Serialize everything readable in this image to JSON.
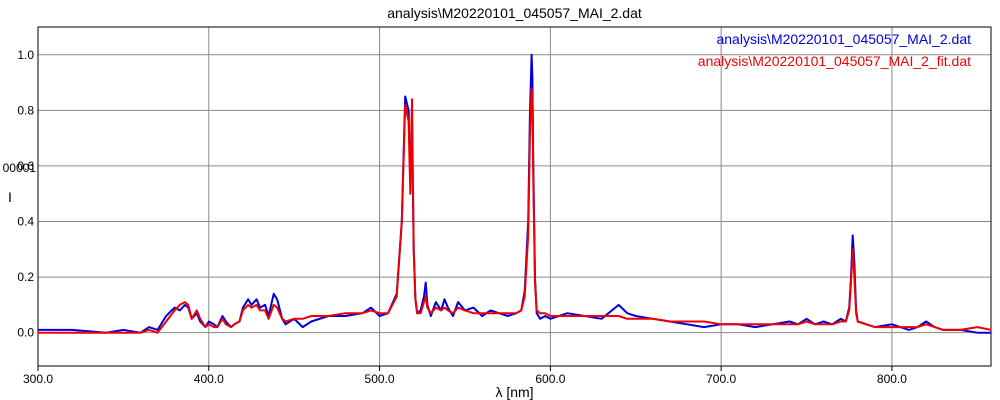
{
  "chart_data": {
    "type": "line",
    "title": "analysis\\M20220101_045057_MAI_2.dat",
    "xlabel": "λ [nm]",
    "ylabel": "I",
    "ylabel_prefix": "00001",
    "xlim": [
      300,
      858
    ],
    "ylim": [
      -0.12,
      1.1
    ],
    "x_ticks": [
      300,
      400,
      500,
      600,
      700,
      800
    ],
    "x_tick_labels": [
      "300.0",
      "400.0",
      "500.0",
      "600.0",
      "700.0",
      "800.0"
    ],
    "y_ticks": [
      0.0,
      0.2,
      0.4,
      0.6,
      0.8,
      1.0
    ],
    "y_tick_labels": [
      "0.0",
      "0.2",
      "0.4",
      "0.6",
      "0.8",
      "1.0"
    ],
    "grid": true,
    "legend_position": "top-right",
    "series": [
      {
        "name": "analysis\\M20220101_045057_MAI_2.dat",
        "color": "#0000dd",
        "x": [
          300,
          320,
          340,
          350,
          360,
          365,
          370,
          375,
          380,
          383,
          386,
          388,
          390,
          393,
          395,
          398,
          400,
          403,
          405,
          408,
          410,
          413,
          415,
          418,
          420,
          423,
          425,
          428,
          430,
          433,
          435,
          438,
          440,
          443,
          445,
          450,
          455,
          460,
          470,
          480,
          490,
          495,
          500,
          505,
          510,
          513,
          515,
          517,
          518,
          519,
          520,
          521,
          522,
          524,
          526,
          527,
          528,
          530,
          533,
          536,
          538,
          540,
          543,
          546,
          550,
          555,
          560,
          565,
          570,
          575,
          580,
          583,
          585,
          587,
          588,
          589,
          589.5,
          590,
          591,
          592,
          594,
          597,
          600,
          610,
          620,
          630,
          640,
          645,
          650,
          660,
          670,
          680,
          690,
          700,
          710,
          720,
          730,
          740,
          745,
          750,
          755,
          760,
          765,
          770,
          773,
          775,
          776,
          777,
          778,
          779,
          780,
          785,
          790,
          800,
          810,
          815,
          820,
          825,
          830,
          840,
          850,
          858
        ],
        "y": [
          0.01,
          0.01,
          0.0,
          0.01,
          0.0,
          0.02,
          0.01,
          0.06,
          0.09,
          0.08,
          0.1,
          0.09,
          0.05,
          0.07,
          0.04,
          0.02,
          0.04,
          0.03,
          0.02,
          0.06,
          0.04,
          0.02,
          0.03,
          0.04,
          0.09,
          0.12,
          0.1,
          0.12,
          0.09,
          0.1,
          0.06,
          0.14,
          0.12,
          0.05,
          0.03,
          0.05,
          0.02,
          0.04,
          0.06,
          0.06,
          0.07,
          0.09,
          0.06,
          0.07,
          0.14,
          0.4,
          0.85,
          0.8,
          0.55,
          0.75,
          0.3,
          0.12,
          0.07,
          0.08,
          0.13,
          0.18,
          0.1,
          0.06,
          0.11,
          0.08,
          0.12,
          0.09,
          0.06,
          0.11,
          0.08,
          0.09,
          0.06,
          0.08,
          0.07,
          0.06,
          0.07,
          0.08,
          0.15,
          0.4,
          0.78,
          1.0,
          0.92,
          0.6,
          0.2,
          0.07,
          0.05,
          0.06,
          0.05,
          0.07,
          0.06,
          0.05,
          0.1,
          0.07,
          0.06,
          0.05,
          0.04,
          0.03,
          0.02,
          0.03,
          0.03,
          0.02,
          0.03,
          0.04,
          0.03,
          0.05,
          0.03,
          0.04,
          0.03,
          0.05,
          0.04,
          0.09,
          0.2,
          0.35,
          0.25,
          0.08,
          0.04,
          0.03,
          0.02,
          0.03,
          0.01,
          0.02,
          0.04,
          0.02,
          0.01,
          0.01,
          0.0,
          0.0
        ]
      },
      {
        "name": "analysis\\M20220101_045057_MAI_2_fit.dat",
        "color": "#ee0000",
        "x": [
          300,
          320,
          340,
          350,
          360,
          365,
          370,
          375,
          380,
          383,
          386,
          388,
          390,
          393,
          395,
          398,
          400,
          403,
          405,
          408,
          410,
          413,
          415,
          418,
          420,
          423,
          425,
          428,
          430,
          433,
          435,
          438,
          440,
          443,
          445,
          450,
          455,
          460,
          470,
          480,
          490,
          495,
          500,
          505,
          510,
          513,
          515,
          517,
          518,
          519,
          520,
          521,
          522,
          524,
          526,
          527,
          528,
          530,
          533,
          536,
          538,
          540,
          543,
          546,
          550,
          555,
          560,
          565,
          570,
          575,
          580,
          583,
          585,
          587,
          588,
          589,
          589.5,
          590,
          591,
          592,
          594,
          597,
          600,
          610,
          620,
          630,
          640,
          645,
          650,
          660,
          670,
          680,
          690,
          700,
          710,
          720,
          730,
          740,
          745,
          750,
          755,
          760,
          765,
          770,
          773,
          775,
          776,
          777,
          778,
          779,
          780,
          785,
          790,
          800,
          810,
          815,
          820,
          825,
          830,
          840,
          850,
          858
        ],
        "y": [
          0.0,
          0.0,
          0.0,
          0.0,
          0.0,
          0.01,
          0.0,
          0.04,
          0.08,
          0.1,
          0.11,
          0.1,
          0.05,
          0.08,
          0.05,
          0.02,
          0.03,
          0.02,
          0.02,
          0.05,
          0.03,
          0.02,
          0.03,
          0.04,
          0.08,
          0.1,
          0.09,
          0.1,
          0.08,
          0.08,
          0.05,
          0.1,
          0.09,
          0.05,
          0.04,
          0.05,
          0.05,
          0.06,
          0.06,
          0.07,
          0.07,
          0.08,
          0.07,
          0.07,
          0.13,
          0.4,
          0.82,
          0.76,
          0.5,
          0.84,
          0.3,
          0.12,
          0.07,
          0.07,
          0.11,
          0.13,
          0.09,
          0.07,
          0.09,
          0.08,
          0.09,
          0.08,
          0.07,
          0.09,
          0.08,
          0.07,
          0.07,
          0.07,
          0.07,
          0.07,
          0.07,
          0.08,
          0.13,
          0.35,
          0.7,
          0.88,
          0.85,
          0.55,
          0.18,
          0.08,
          0.07,
          0.07,
          0.06,
          0.06,
          0.06,
          0.06,
          0.06,
          0.05,
          0.05,
          0.05,
          0.04,
          0.04,
          0.04,
          0.03,
          0.03,
          0.03,
          0.03,
          0.03,
          0.03,
          0.04,
          0.03,
          0.03,
          0.03,
          0.04,
          0.04,
          0.08,
          0.18,
          0.3,
          0.2,
          0.07,
          0.04,
          0.03,
          0.02,
          0.02,
          0.02,
          0.02,
          0.03,
          0.02,
          0.01,
          0.01,
          0.02,
          0.01
        ]
      }
    ]
  }
}
